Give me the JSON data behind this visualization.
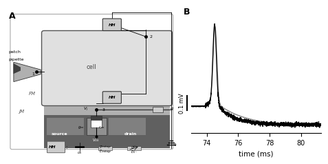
{
  "title_A": "A",
  "title_B": "B",
  "xlabel": "time (ms)",
  "xlim": [
    73,
    81.3
  ],
  "xticks": [
    74,
    76,
    78,
    80
  ],
  "background_color": "#ffffff",
  "line_color_black": "#000000",
  "line_color_gray": "#888888",
  "scalebar_label": "0.1 mV",
  "cell_fill": "#d0d0d0",
  "cell_fill_inner": "#e8e8e8",
  "box_fill": "#c0c0c0",
  "transistor_fill": "#808080",
  "transistor_dark": "#505050",
  "pipette_fill": "#b0b0b0"
}
